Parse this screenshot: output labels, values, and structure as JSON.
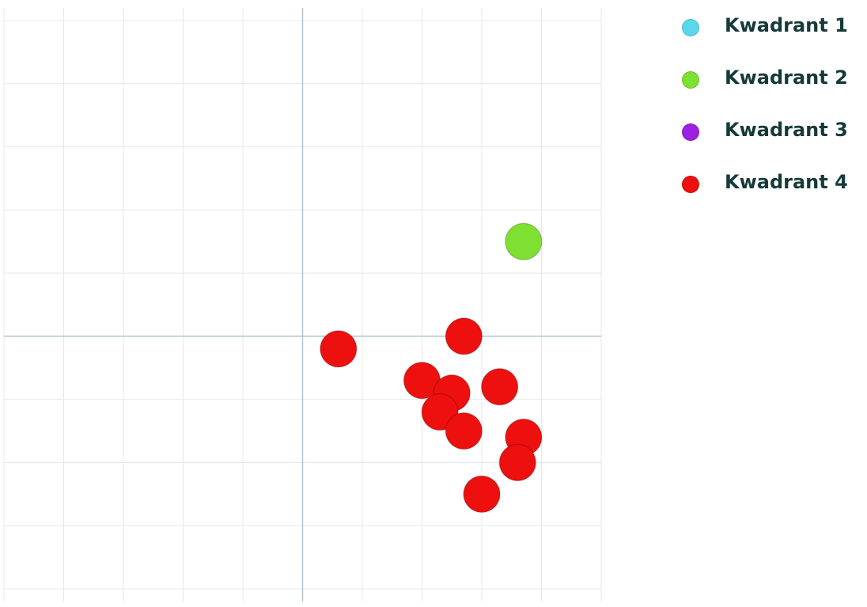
{
  "chart_data": {
    "type": "scatter",
    "title": "",
    "xlabel": "",
    "ylabel": "",
    "xlim": [
      -5,
      5
    ],
    "ylim": [
      -4.2,
      5.2
    ],
    "grid": true,
    "legend_placement": "top-right",
    "series": [
      {
        "name": "Kwadrant 1",
        "color": "#5ad8ea",
        "x": [],
        "y": []
      },
      {
        "name": "Kwadrant 2",
        "color": "#7ee030",
        "x": [
          3.7
        ],
        "y": [
          1.5
        ]
      },
      {
        "name": "Kwadrant 3",
        "color": "#9b22e0",
        "x": [],
        "y": []
      },
      {
        "name": "Kwadrant 4",
        "color": "#ee0f0f",
        "x": [
          0.6,
          2.7,
          2.0,
          2.5,
          3.3,
          2.3,
          2.7,
          3.7,
          3.6,
          3.0
        ],
        "y": [
          -0.2,
          0.0,
          -0.7,
          -0.9,
          -0.8,
          -1.2,
          -1.5,
          -1.6,
          -2.0,
          -2.5
        ]
      }
    ]
  }
}
